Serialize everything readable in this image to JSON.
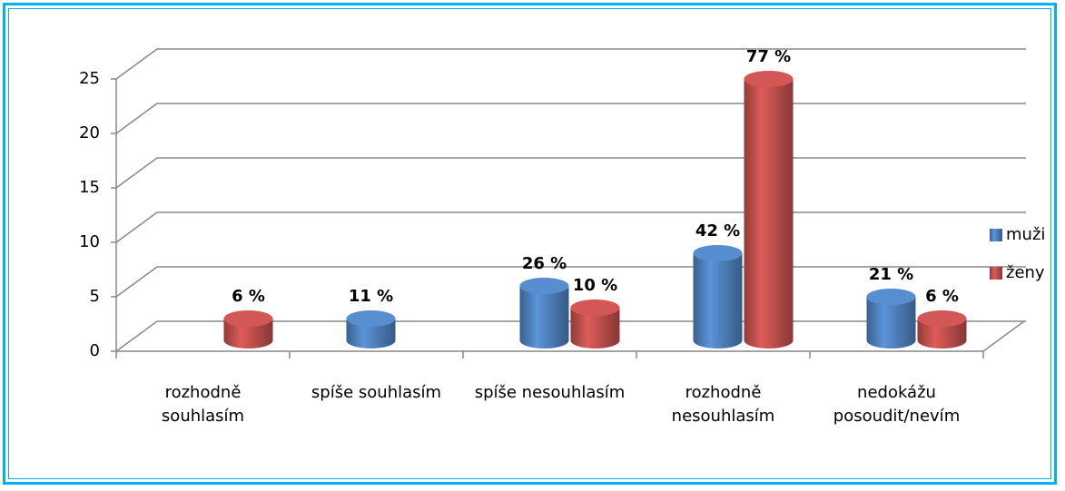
{
  "chart_data": {
    "type": "bar3d",
    "categories": [
      "rozhodně souhlasím",
      "spíše souhlasím",
      "spíše nesouhlasím",
      "rozhodně nesouhlasím",
      "nedokážu posoudit/nevím"
    ],
    "series": [
      {
        "name": "muži",
        "color": "#4f81bd",
        "values": [
          0,
          2,
          5,
          8,
          4
        ],
        "value_labels": [
          null,
          "11 %",
          "26 %",
          "42 %",
          "21 %"
        ]
      },
      {
        "name": "ženy",
        "color": "#c0504d",
        "values": [
          2,
          0,
          3,
          24,
          2
        ],
        "value_labels": [
          "6 %",
          null,
          "10 %",
          "77 %",
          "6 %"
        ]
      }
    ],
    "ylim": [
      0,
      25
    ],
    "yticks": [
      0,
      5,
      10,
      15,
      20,
      25
    ],
    "grid": true,
    "legend": "right"
  }
}
